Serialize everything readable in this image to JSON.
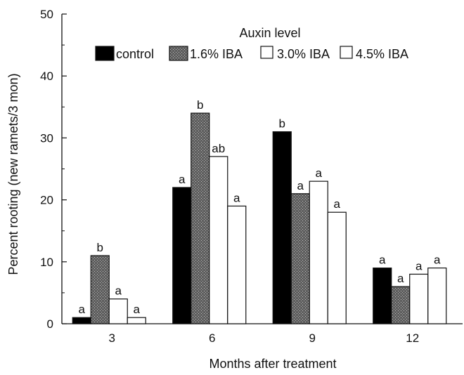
{
  "chart_data": {
    "type": "bar",
    "title": "",
    "xlabel": "Months after treatment",
    "ylabel": "Percent rooting (new ramets/3 mon)",
    "categories": [
      "3",
      "6",
      "9",
      "12"
    ],
    "ylim": [
      0,
      50
    ],
    "yticks": [
      0,
      10,
      20,
      30,
      40,
      50
    ],
    "grid": false,
    "legend": {
      "title": "Auxin level",
      "placement": "top"
    },
    "series": [
      {
        "name": "control",
        "color": "#000000",
        "fill": "solid",
        "values": [
          1,
          22,
          31,
          9
        ],
        "labels": [
          "a",
          "a",
          "b",
          "a"
        ]
      },
      {
        "name": "1.6% IBA",
        "color": "#6e6e6e",
        "fill": "stipple",
        "values": [
          11,
          34,
          21,
          6
        ],
        "labels": [
          "b",
          "b",
          "a",
          "a"
        ]
      },
      {
        "name": "3.0% IBA",
        "color": "#ffffff",
        "fill": "open",
        "values": [
          4,
          27,
          23,
          8
        ],
        "labels": [
          "a",
          "ab",
          "a",
          "a"
        ]
      },
      {
        "name": "4.5% IBA",
        "color": "#ffffff",
        "fill": "open",
        "values": [
          1,
          19,
          18,
          9
        ],
        "labels": [
          "a",
          "a",
          "a",
          "a"
        ]
      }
    ]
  }
}
